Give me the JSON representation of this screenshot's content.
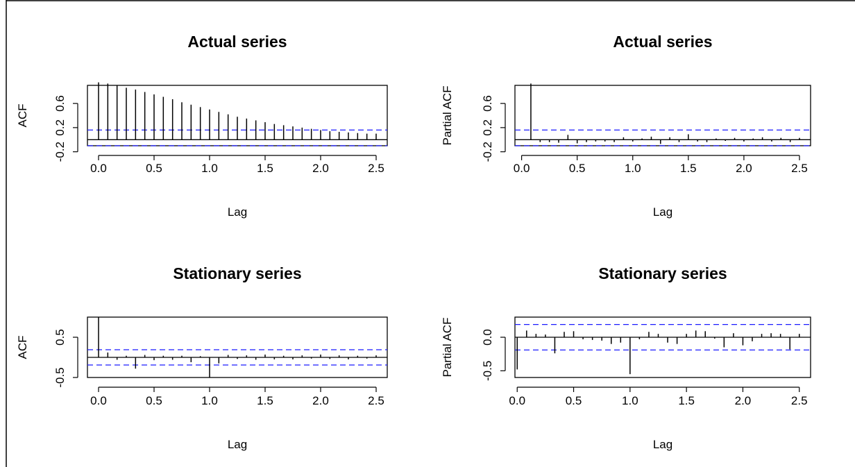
{
  "chart_data": [
    {
      "type": "bar",
      "panel": "acf",
      "title": "Actual series",
      "xlabel": "Lag",
      "ylabel": "ACF",
      "xlim": [
        -0.1,
        2.6
      ],
      "ylim": [
        -0.1,
        0.9
      ],
      "x_ticks": [
        "0.0",
        "0.5",
        "1.0",
        "1.5",
        "2.0",
        "2.5"
      ],
      "y_ticks": [
        "-0.2",
        "0.2",
        "0.6"
      ],
      "y_tick_values": [
        -0.2,
        0.2,
        0.6
      ],
      "ci": [
        0.16,
        -0.1
      ],
      "x": [
        0.0,
        0.0833,
        0.1667,
        0.25,
        0.3333,
        0.4167,
        0.5,
        0.5833,
        0.6667,
        0.75,
        0.8333,
        0.9167,
        1.0,
        1.0833,
        1.1667,
        1.25,
        1.3333,
        1.4167,
        1.5,
        1.5833,
        1.6667,
        1.75,
        1.8333,
        1.9167,
        2.0,
        2.0833,
        2.1667,
        2.25,
        2.3333,
        2.4167,
        2.5
      ],
      "values": [
        0.95,
        0.93,
        0.9,
        0.86,
        0.83,
        0.79,
        0.75,
        0.71,
        0.67,
        0.62,
        0.58,
        0.54,
        0.5,
        0.46,
        0.42,
        0.38,
        0.35,
        0.32,
        0.29,
        0.26,
        0.24,
        0.22,
        0.2,
        0.18,
        0.16,
        0.14,
        0.13,
        0.12,
        0.11,
        0.1,
        0.1
      ]
    },
    {
      "type": "bar",
      "panel": "pacf",
      "title": "Actual series",
      "xlabel": "Lag",
      "ylabel": "Partial ACF",
      "xlim": [
        -0.06,
        2.6
      ],
      "ylim": [
        -0.1,
        0.9
      ],
      "x_ticks": [
        "0.0",
        "0.5",
        "1.0",
        "1.5",
        "2.0",
        "2.5"
      ],
      "y_ticks": [
        "-0.2",
        "0.2",
        "0.6"
      ],
      "y_tick_values": [
        -0.2,
        0.2,
        0.6
      ],
      "ci": [
        0.16,
        -0.1
      ],
      "x": [
        0.0833,
        0.1667,
        0.25,
        0.3333,
        0.4167,
        0.5,
        0.5833,
        0.6667,
        0.75,
        0.8333,
        0.9167,
        1.0,
        1.0833,
        1.1667,
        1.25,
        1.3333,
        1.4167,
        1.5,
        1.5833,
        1.6667,
        1.75,
        1.8333,
        1.9167,
        2.0,
        2.0833,
        2.1667,
        2.25,
        2.3333,
        2.4167,
        2.5
      ],
      "values": [
        0.93,
        -0.04,
        -0.04,
        -0.05,
        0.08,
        -0.06,
        -0.04,
        -0.03,
        -0.03,
        -0.04,
        0.04,
        -0.03,
        0.02,
        0.05,
        -0.07,
        0.04,
        -0.04,
        0.09,
        -0.03,
        -0.04,
        0.02,
        -0.02,
        0.03,
        -0.03,
        0.02,
        0.04,
        -0.03,
        0.03,
        -0.04,
        0.03
      ]
    },
    {
      "type": "bar",
      "panel": "acf",
      "title": "Stationary series",
      "xlabel": "Lag",
      "ylabel": "ACF",
      "xlim": [
        -0.1,
        2.6
      ],
      "ylim": [
        -0.5,
        1.0
      ],
      "x_ticks": [
        "0.0",
        "0.5",
        "1.0",
        "1.5",
        "2.0",
        "2.5"
      ],
      "y_ticks": [
        "-0.5",
        "0.5"
      ],
      "y_tick_values": [
        -0.5,
        0.5
      ],
      "ci": [
        0.19,
        -0.19
      ],
      "x": [
        0.0,
        0.0833,
        0.1667,
        0.25,
        0.3333,
        0.4167,
        0.5,
        0.5833,
        0.6667,
        0.75,
        0.8333,
        0.9167,
        1.0,
        1.0833,
        1.1667,
        1.25,
        1.3333,
        1.4167,
        1.5,
        1.5833,
        1.6667,
        1.75,
        1.8333,
        1.9167,
        2.0,
        2.0833,
        2.1667,
        2.25,
        2.3333,
        2.4167,
        2.5
      ],
      "values": [
        1.0,
        0.12,
        -0.06,
        0.04,
        -0.28,
        0.06,
        -0.07,
        0.04,
        -0.06,
        0.04,
        -0.12,
        0.03,
        -0.5,
        -0.15,
        0.06,
        -0.04,
        0.05,
        -0.06,
        0.07,
        -0.05,
        0.04,
        -0.05,
        0.05,
        -0.03,
        0.07,
        -0.04,
        0.05,
        -0.05,
        0.04,
        -0.03,
        0.05
      ]
    },
    {
      "type": "bar",
      "panel": "pacf",
      "title": "Stationary series",
      "xlabel": "Lag",
      "ylabel": "Partial ACF",
      "xlim": [
        -0.02,
        2.6
      ],
      "ylim": [
        -0.6,
        0.3
      ],
      "x_ticks": [
        "0.0",
        "0.5",
        "1.0",
        "1.5",
        "2.0",
        "2.5"
      ],
      "y_ticks": [
        "-0.5",
        "0.0"
      ],
      "y_tick_values": [
        -0.5,
        0.0
      ],
      "ci": [
        0.19,
        -0.19
      ],
      "x": [
        0.0,
        0.0833,
        0.1667,
        0.25,
        0.3333,
        0.4167,
        0.5,
        0.5833,
        0.6667,
        0.75,
        0.8333,
        0.9167,
        1.0,
        1.0833,
        1.1667,
        1.25,
        1.3333,
        1.4167,
        1.5,
        1.5833,
        1.6667,
        1.75,
        1.8333,
        1.9167,
        2.0,
        2.0833,
        2.1667,
        2.25,
        2.3333,
        2.4167,
        2.5
      ],
      "values": [
        -0.48,
        0.1,
        0.05,
        0.04,
        -0.24,
        0.08,
        0.09,
        -0.03,
        -0.04,
        -0.05,
        -0.1,
        -0.08,
        -0.55,
        -0.03,
        0.08,
        0.05,
        -0.08,
        -0.1,
        0.05,
        0.1,
        0.09,
        -0.02,
        -0.15,
        0.06,
        -0.12,
        -0.06,
        0.05,
        0.06,
        0.05,
        -0.18,
        0.05
      ]
    }
  ]
}
